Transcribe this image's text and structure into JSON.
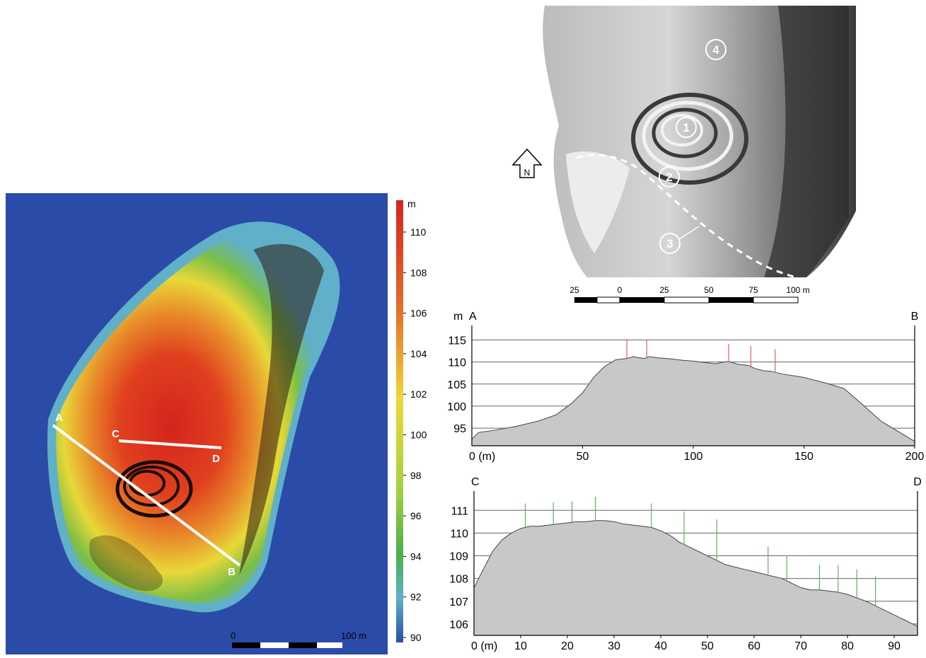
{
  "elevation_map": {
    "section_labels": {
      "a": "A",
      "b": "B",
      "c": "C",
      "d": "D"
    },
    "scale_bar": {
      "start": "0",
      "end": "100 m"
    },
    "colors": {
      "water": "#2a4ca8",
      "low": "#5fb0c8",
      "mid": "#6fb84a",
      "high_yellow": "#e8d838",
      "high_orange": "#e47a2a",
      "top_red": "#d4241e"
    }
  },
  "color_legend": {
    "unit": "m",
    "ticks": [
      "110",
      "108",
      "106",
      "104",
      "102",
      "100",
      "98",
      "96",
      "94",
      "92",
      "90"
    ]
  },
  "hillshade": {
    "feature_markers": [
      "1",
      "2",
      "3",
      "4"
    ],
    "north_label": "N",
    "scale_labels": [
      "25",
      "0",
      "25",
      "50",
      "75",
      "100 m"
    ]
  },
  "chart_data": [
    {
      "type": "area",
      "start_label": "A",
      "end_label": "B",
      "ylabel": "m",
      "xlabel": "0 (m)",
      "x_ticks": [
        "50",
        "100",
        "150",
        "200"
      ],
      "y_ticks": [
        "95",
        "100",
        "105",
        "110",
        "115"
      ],
      "xlim": [
        0,
        200
      ],
      "ylim": [
        91,
        117
      ],
      "fill_color": "#c8c8c8",
      "marker_color": "#e06060",
      "profile": {
        "x": [
          0,
          3,
          10,
          20,
          30,
          38,
          45,
          50,
          55,
          60,
          65,
          70,
          73,
          75,
          78,
          80,
          85,
          90,
          95,
          100,
          110,
          115,
          117,
          120,
          125,
          128,
          132,
          135,
          140,
          150,
          160,
          168,
          175,
          185,
          195,
          200
        ],
        "y": [
          92.5,
          94.0,
          94.5,
          95.4,
          96.6,
          98.0,
          100.6,
          103.0,
          106.5,
          109.0,
          110.5,
          110.8,
          111.2,
          111.0,
          110.8,
          111.2,
          110.9,
          110.7,
          110.4,
          110.2,
          109.6,
          110.1,
          110.0,
          109.5,
          109.2,
          108.5,
          108.0,
          107.9,
          107.3,
          106.5,
          105.2,
          104.0,
          101.0,
          96.5,
          93.5,
          92.0
        ]
      },
      "markers": {
        "x": [
          70,
          79,
          116,
          126,
          137
        ],
        "top": [
          114.9,
          115.0,
          114.1,
          113.6,
          112.9
        ]
      }
    },
    {
      "type": "area",
      "start_label": "C",
      "end_label": "D",
      "xlabel": "0 (m)",
      "x_ticks": [
        "10",
        "20",
        "30",
        "40",
        "50",
        "60",
        "70",
        "80",
        "90"
      ],
      "y_ticks": [
        "106",
        "107",
        "108",
        "109",
        "110",
        "111"
      ],
      "xlim": [
        0,
        95
      ],
      "ylim": [
        105.5,
        111.6
      ],
      "fill_color": "#c8c8c8",
      "marker_color": "#60b060",
      "profile": {
        "x": [
          0,
          2,
          4,
          6,
          8,
          10,
          12,
          14,
          16,
          18,
          20,
          22,
          24,
          26,
          28,
          30,
          32,
          34,
          36,
          38,
          40,
          42,
          44,
          46,
          48,
          50,
          52,
          54,
          56,
          58,
          60,
          62,
          64,
          66,
          68,
          70,
          72,
          74,
          76,
          78,
          80,
          82,
          84,
          86,
          88,
          90,
          92,
          94,
          95
        ],
        "y": [
          107.6,
          108.4,
          109.2,
          109.7,
          110.0,
          110.2,
          110.3,
          110.3,
          110.35,
          110.4,
          110.45,
          110.5,
          110.5,
          110.55,
          110.55,
          110.5,
          110.4,
          110.35,
          110.3,
          110.25,
          110.1,
          109.9,
          109.6,
          109.4,
          109.2,
          109.0,
          108.8,
          108.6,
          108.5,
          108.4,
          108.3,
          108.2,
          108.1,
          108.0,
          107.8,
          107.6,
          107.5,
          107.5,
          107.45,
          107.4,
          107.3,
          107.15,
          107.0,
          106.8,
          106.6,
          106.4,
          106.2,
          106.0,
          105.9
        ]
      },
      "markers": {
        "x": [
          11,
          17,
          21,
          26,
          38,
          45,
          52,
          63,
          67,
          74,
          78,
          82,
          86
        ],
        "top": [
          111.3,
          111.35,
          111.4,
          111.6,
          111.3,
          110.95,
          110.6,
          109.4,
          109.0,
          108.6,
          108.6,
          108.4,
          108.1
        ]
      }
    }
  ]
}
